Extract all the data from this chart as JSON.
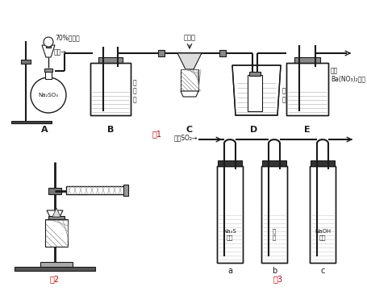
{
  "bg_color": "#ffffff",
  "fig_label1": "图1",
  "fig_label2": "图2",
  "fig_label3": "图3",
  "label_A": "A",
  "label_B": "B",
  "label_C": "C",
  "label_D": "D",
  "label_E": "E",
  "label_70H2SO4": "70%浓硫酸",
  "label_O2": "氧气→",
  "label_NaSO3": "Na₂SO₃",
  "label_catalyst": "催化剂",
  "label_concH2SO4": "浓\n硫\n酸",
  "label_ice_water": "冰\n水",
  "label_BaNO3": "足量\nBa(NO₃)₂溶液",
  "label_SO2": "足量SO₂→",
  "label_Na2S": "Na₂S\n溶液",
  "label_a": "a",
  "label_b": "b",
  "label_c": "c",
  "label_chlorine": "氯\n水",
  "label_NaOH": "NaOH\n溶液",
  "lc": "#1a1a1a"
}
